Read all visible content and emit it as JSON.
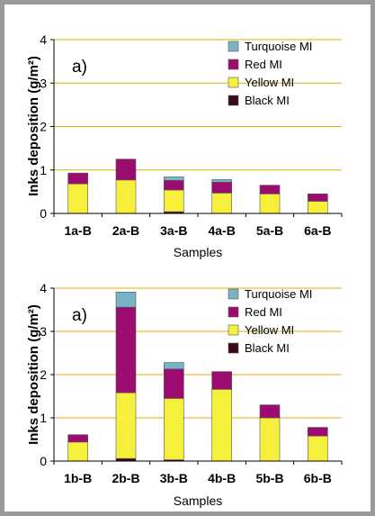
{
  "colors": {
    "frame": "#9a9a9a",
    "gridline": "#e2b000",
    "axis": "#000000",
    "turquoise": "#78b4c6",
    "red": "#9c0b6f",
    "yellow": "#f6f03c",
    "black": "#3a0a1a"
  },
  "chart_data": [
    {
      "type": "bar",
      "stacked": true,
      "panel_label": "a)",
      "ylabel": "Inks deposition (g/m²)",
      "xlabel": "Samples",
      "ylim": [
        0,
        4
      ],
      "yticks": [
        "0",
        "1",
        "2",
        "3",
        "4"
      ],
      "grid": true,
      "legend_position": "top-right",
      "categories": [
        "1a-B",
        "2a-B",
        "3a-B",
        "4a-B",
        "5a-B",
        "6a-B"
      ],
      "series": [
        {
          "name": "Black MI",
          "color_key": "black",
          "values": [
            0,
            0,
            0.04,
            0,
            0,
            0
          ]
        },
        {
          "name": "Yellow MI",
          "color_key": "yellow",
          "values": [
            0.68,
            0.77,
            0.5,
            0.47,
            0.45,
            0.28
          ]
        },
        {
          "name": "Red MI",
          "color_key": "red",
          "values": [
            0.25,
            0.48,
            0.22,
            0.25,
            0.2,
            0.17
          ]
        },
        {
          "name": "Turquoise MI",
          "color_key": "turquoise",
          "values": [
            0,
            0,
            0.08,
            0.06,
            0,
            0
          ]
        }
      ]
    },
    {
      "type": "bar",
      "stacked": true,
      "panel_label": "a)",
      "ylabel": "Inks deposition (g/m²)",
      "xlabel": "Samples",
      "ylim": [
        0,
        4
      ],
      "yticks": [
        "0",
        "1",
        "2",
        "3",
        "4"
      ],
      "grid": true,
      "legend_position": "top-right",
      "categories": [
        "1b-B",
        "2b-B",
        "3b-B",
        "4b-B",
        "5b-B",
        "6b-B"
      ],
      "series": [
        {
          "name": "Black MI",
          "color_key": "black",
          "values": [
            0,
            0.06,
            0.03,
            0,
            0,
            0
          ]
        },
        {
          "name": "Yellow MI",
          "color_key": "yellow",
          "values": [
            0.44,
            1.52,
            1.42,
            1.66,
            1.0,
            0.58
          ]
        },
        {
          "name": "Red MI",
          "color_key": "red",
          "values": [
            0.17,
            1.98,
            0.68,
            0.41,
            0.3,
            0.2
          ]
        },
        {
          "name": "Turquoise MI",
          "color_key": "turquoise",
          "values": [
            0,
            0.35,
            0.15,
            0,
            0,
            0
          ]
        }
      ]
    }
  ]
}
